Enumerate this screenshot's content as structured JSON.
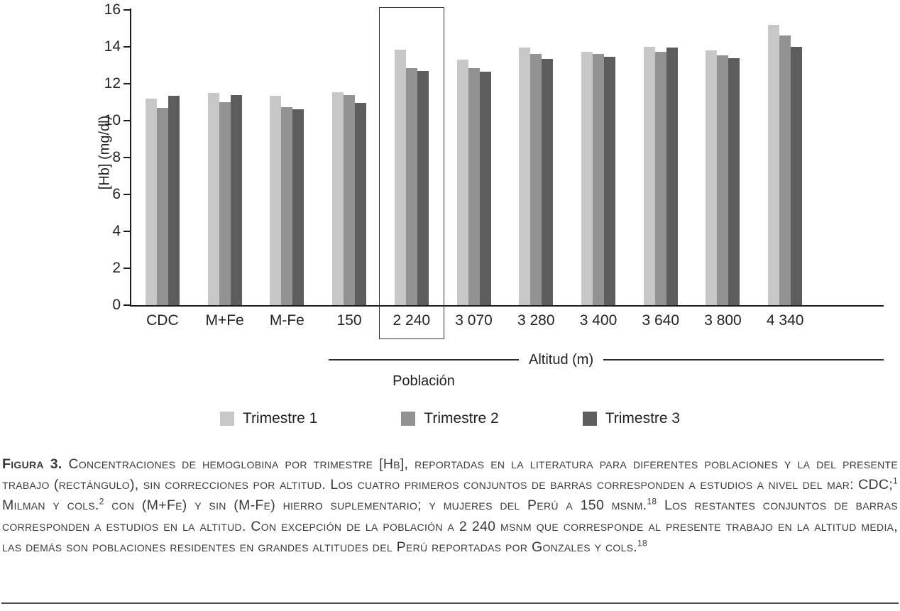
{
  "chart_data": {
    "type": "bar",
    "title": "Concentraciones de hemoglobina por trimestre [Hb]",
    "ylabel": "[Hb] (mg/dl)",
    "ylim": [
      0,
      16
    ],
    "yticks": [
      0,
      2,
      4,
      6,
      8,
      10,
      12,
      14,
      16
    ],
    "categories": [
      "CDC",
      "M+Fe",
      "M-Fe",
      "150",
      "2 240",
      "3 070",
      "3 280",
      "3 400",
      "3 640",
      "3 800",
      "4 340"
    ],
    "series": [
      {
        "name": "Trimestre 1",
        "color": "#c7c7c7",
        "values": [
          11.2,
          11.5,
          11.35,
          11.55,
          13.85,
          13.3,
          13.95,
          13.75,
          14.0,
          13.8,
          15.2
        ]
      },
      {
        "name": "Trimestre 2",
        "color": "#929292",
        "values": [
          10.7,
          11.0,
          10.75,
          11.4,
          12.85,
          12.85,
          13.6,
          13.6,
          13.75,
          13.55,
          14.6
        ]
      },
      {
        "name": "Trimestre 3",
        "color": "#5d5d5d",
        "values": [
          11.35,
          11.4,
          10.6,
          10.95,
          12.7,
          12.65,
          13.35,
          13.45,
          13.95,
          13.4,
          14.0
        ]
      }
    ],
    "highlight_index": 4,
    "highlight_category": "2 240",
    "altitude_span": {
      "label": "Altitud (m)",
      "from_index": 3,
      "to_index": 10
    },
    "population_label": "Población",
    "legend_position": "bottom",
    "grid": false
  },
  "caption": {
    "segments": [
      {
        "t": "Figura 3. ",
        "b": true
      },
      {
        "t": "Concentraciones de hemoglobina por trimestre [Hb], reportadas en la literatura para diferentes poblaciones y la del presente trabajo (rectángulo), sin correcciones por altitud. Los cuatro primeros conjuntos de barras corresponden a estudios a nivel del mar: CDC;"
      },
      {
        "t": "1",
        "sup": true
      },
      {
        "t": " Milman y cols."
      },
      {
        "t": "2",
        "sup": true
      },
      {
        "t": " con (M+Fe) y sin (M-Fe) hierro suplementario; y mujeres del Perú a 150 msnm."
      },
      {
        "t": "18",
        "sup": true
      },
      {
        "t": " Los restantes conjuntos de barras corresponden a estudios en la altitud. Con excepción de la población a 2 240 msnm que corresponde al presente trabajo en la altitud media, las demás son poblaciones residentes en grandes altitudes del Perú reportadas por Gonzales y cols."
      },
      {
        "t": "18",
        "sup": true
      }
    ]
  }
}
